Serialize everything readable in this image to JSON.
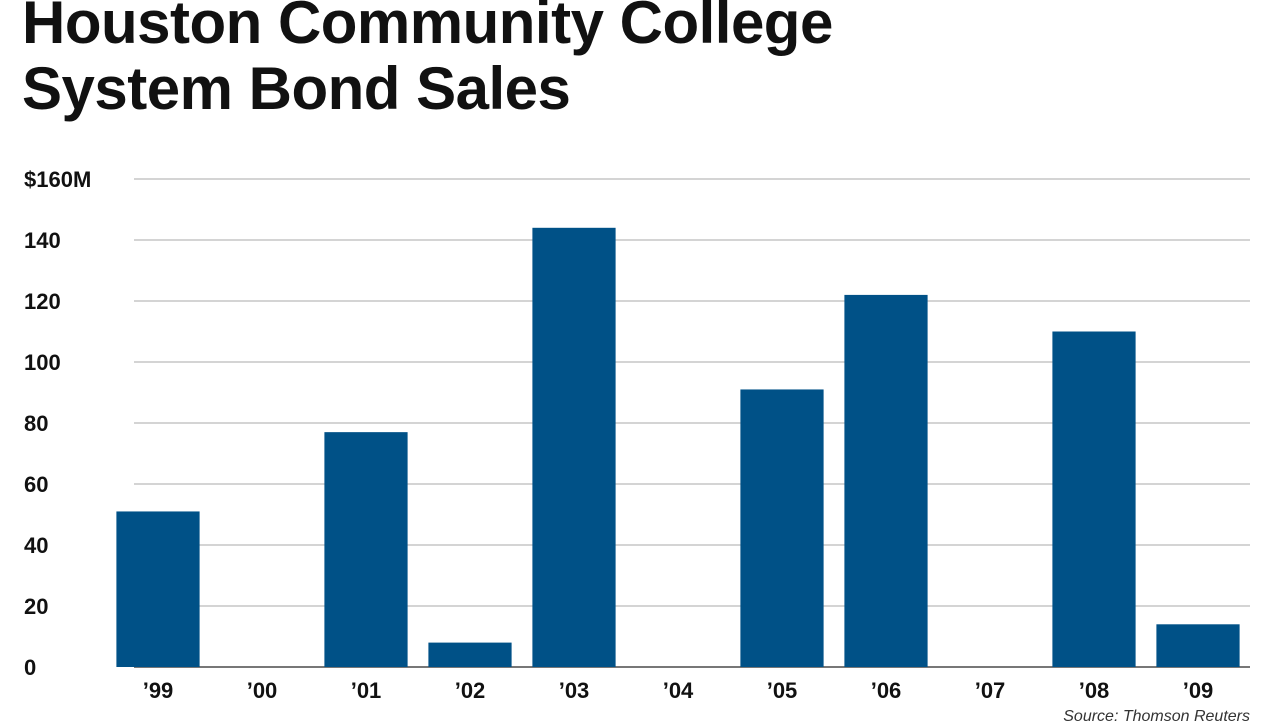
{
  "chart_data": {
    "type": "bar",
    "title_line1": "Houston Community College",
    "title_line2": "System Bond Sales",
    "categories": [
      "’99",
      "’00",
      "’01",
      "’02",
      "’03",
      "’04",
      "’05",
      "’06",
      "’07",
      "’08",
      "’09"
    ],
    "values": [
      51,
      0,
      77,
      8,
      144,
      0,
      91,
      122,
      0,
      110,
      14
    ],
    "ylim": [
      0,
      160
    ],
    "yticks": [
      0,
      20,
      40,
      60,
      80,
      100,
      120,
      140,
      160
    ],
    "ytick_labels": [
      "0",
      "20",
      "40",
      "60",
      "80",
      "100",
      "120",
      "140",
      "$160M"
    ],
    "grid": true,
    "bar_color": "#005187",
    "source": "Source: Thomson Reuters"
  }
}
